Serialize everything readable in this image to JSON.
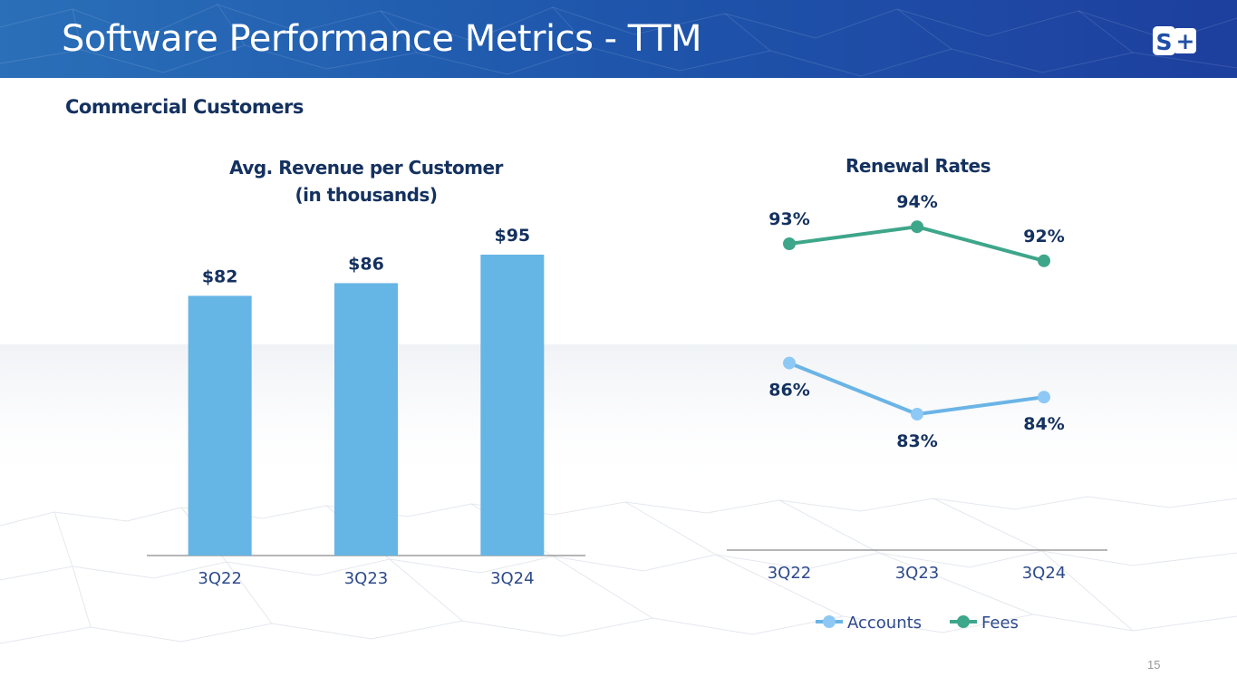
{
  "header": {
    "title": "Software Performance Metrics - TTM",
    "logo_text": "S+",
    "logo_icon": "s-plus-logo-icon"
  },
  "section": {
    "subtitle": "Commercial Customers"
  },
  "colors": {
    "header_start": "#2a6fb8",
    "header_end": "#1d3f9e",
    "text_dark": "#14315f",
    "axis_label": "#2e4a8c",
    "bar": "#65b5e5",
    "accounts_line": "#6ab4e6",
    "accounts_marker": "#8ec9f5",
    "fees_line": "#3ea68a"
  },
  "page_number": "15",
  "chart_data": [
    {
      "type": "bar",
      "title_line1": "Avg. Revenue per Customer",
      "title_line2": "(in thousands)",
      "categories": [
        "3Q22",
        "3Q23",
        "3Q24"
      ],
      "values": [
        82,
        86,
        95
      ],
      "data_labels": [
        "$82",
        "$86",
        "$95"
      ],
      "xlabel": "",
      "ylabel": "",
      "ylim": [
        0,
        95
      ],
      "grid": false,
      "legend": "none"
    },
    {
      "type": "line",
      "title": "Renewal Rates",
      "categories": [
        "3Q22",
        "3Q23",
        "3Q24"
      ],
      "series": [
        {
          "name": "Accounts",
          "values": [
            86,
            83,
            84
          ],
          "data_labels": [
            "86%",
            "83%",
            "84%"
          ],
          "label_position": "below"
        },
        {
          "name": "Fees",
          "values": [
            93,
            94,
            92
          ],
          "data_labels": [
            "93%",
            "94%",
            "92%"
          ],
          "label_position": "above"
        }
      ],
      "unit": "%",
      "grid": false,
      "legend": "bottom"
    }
  ]
}
